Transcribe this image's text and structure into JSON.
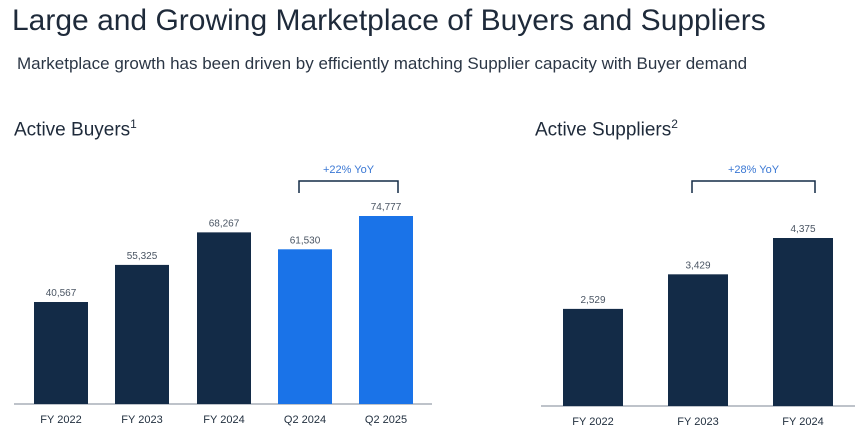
{
  "header": {
    "title": "Large and Growing Marketplace of Buyers and Suppliers",
    "subtitle": "Marketplace growth has been driven by efficiently matching Supplier capacity with Buyer demand"
  },
  "colors": {
    "dark": "#132b47",
    "bright": "#1a73e8",
    "accent_text": "#3b78d4"
  },
  "chart_data": [
    {
      "type": "bar",
      "title": "Active Buyers",
      "title_sup": "1",
      "categories": [
        "FY 2022",
        "FY 2023",
        "FY 2024",
        "Q2 2024",
        "Q2 2025"
      ],
      "values": [
        40567,
        55325,
        68267,
        61530,
        74777
      ],
      "value_labels": [
        "40,567",
        "55,325",
        "68,267",
        "61,530",
        "74,777"
      ],
      "bar_colors": [
        "#132b47",
        "#132b47",
        "#132b47",
        "#1a73e8",
        "#1a73e8"
      ],
      "ylim": [
        0,
        74777
      ],
      "annotation": {
        "text": "+22% YoY",
        "from": "Q2 2024",
        "to": "Q2 2025"
      }
    },
    {
      "type": "bar",
      "title": "Active Suppliers",
      "title_sup": "2",
      "categories": [
        "FY 2022",
        "FY 2023",
        "FY 2024"
      ],
      "values": [
        2529,
        3429,
        4375
      ],
      "value_labels": [
        "2,529",
        "3,429",
        "4,375"
      ],
      "bar_colors": [
        "#132b47",
        "#132b47",
        "#132b47"
      ],
      "ylim": [
        0,
        4375
      ],
      "annotation": {
        "text": "+28% YoY",
        "from": "FY 2023",
        "to": "FY 2024"
      }
    }
  ]
}
